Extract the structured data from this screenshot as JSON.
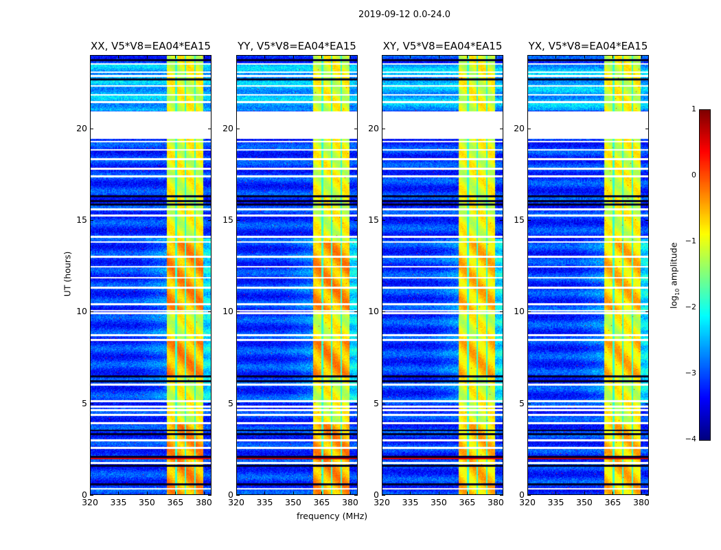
{
  "chart_data": {
    "type": "heatmap",
    "title": "2019-09-12 0.0-24.0",
    "xlabel": "frequency (MHz)",
    "ylabel": "UT (hours)",
    "xlim": [
      320,
      384
    ],
    "ylim": [
      0,
      24
    ],
    "xticks": [
      320,
      335,
      350,
      365,
      380
    ],
    "yticks": [
      0,
      5,
      10,
      15,
      20
    ],
    "panels": [
      {
        "title": "XX, V5*V8=EA04*EA15",
        "pol": "XX"
      },
      {
        "title": "YY, V5*V8=EA04*EA15",
        "pol": "YY"
      },
      {
        "title": "XY, V5*V8=EA04*EA15",
        "pol": "XY"
      },
      {
        "title": "YX, V5*V8=EA04*EA15",
        "pol": "YX"
      }
    ],
    "bright_band_mhz": [
      360.5,
      380
    ],
    "band_dips_mhz": [
      365.5,
      370.5,
      375.5
    ],
    "flagged_hours": [
      [
        19.45,
        20.95
      ]
    ],
    "flagged_rows_hours": [
      23.55,
      23.1,
      22.9,
      22.35,
      21.85,
      21.45,
      19.3,
      18.85,
      18.35,
      17.8,
      17.4,
      15.6,
      15.25,
      14.1,
      13.8,
      13.0,
      12.45,
      11.85,
      11.3,
      10.4,
      10.05,
      9.9,
      8.7,
      8.45,
      6.0,
      5.1,
      4.8,
      4.6,
      4.35,
      3.9,
      2.95,
      2.55,
      1.7,
      0.3
    ],
    "low_rows_hours": [
      23.75,
      22.7,
      16.3,
      16.05,
      15.85,
      6.45,
      6.2,
      3.5,
      3.3,
      2.05,
      1.55,
      0.55
    ],
    "high_rows_hours": [
      [
        1.9,
        2.1
      ]
    ],
    "colorbar": {
      "label_prefix": "log",
      "label_sub": "10",
      "label_suffix": " amplitude",
      "range": [
        -4,
        1
      ],
      "ticks": [
        "1",
        "0",
        "−1",
        "−2",
        "−3",
        "−4"
      ],
      "tick_values": [
        1,
        0,
        -1,
        -2,
        -3,
        -4
      ],
      "colormap": "jet"
    }
  }
}
